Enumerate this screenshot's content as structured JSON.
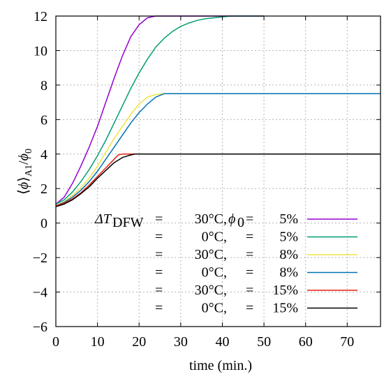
{
  "chart_data": {
    "type": "line",
    "xlabel": "time (min.)",
    "ylabel": "⟨ϕ⟩A1/ϕ0",
    "xlim": [
      0,
      78
    ],
    "ylim": [
      -6,
      12
    ],
    "x_ticks": [
      "0",
      "10",
      "20",
      "30",
      "40",
      "50",
      "60",
      "70"
    ],
    "y_ticks": [
      "−6",
      "−4",
      "−2",
      "0",
      "2",
      "4",
      "6",
      "8",
      "10",
      "12"
    ],
    "grid": true,
    "legend_position": "bottom-right",
    "legend_rows": [
      {
        "lhs": "ΔT",
        "lhs_sub": "DFW",
        "eq": "=",
        "temp": "30°C,",
        "phi": "ϕ",
        "phi_sub": "0",
        "phi_eq": "=",
        "pct": "5%"
      },
      {
        "lhs": "",
        "lhs_sub": "",
        "eq": "=",
        "temp": "0°C,",
        "phi": "",
        "phi_sub": "",
        "phi_eq": "=",
        "pct": "5%"
      },
      {
        "lhs": "",
        "lhs_sub": "",
        "eq": "=",
        "temp": "30°C,",
        "phi": "",
        "phi_sub": "",
        "phi_eq": "=",
        "pct": "8%"
      },
      {
        "lhs": "",
        "lhs_sub": "",
        "eq": "=",
        "temp": "0°C,",
        "phi": "",
        "phi_sub": "",
        "phi_eq": "=",
        "pct": "8%"
      },
      {
        "lhs": "",
        "lhs_sub": "",
        "eq": "=",
        "temp": "30°C,",
        "phi": "",
        "phi_sub": "",
        "phi_eq": "=",
        "pct": "15%"
      },
      {
        "lhs": "",
        "lhs_sub": "",
        "eq": "=",
        "temp": "0°C,",
        "phi": "",
        "phi_sub": "",
        "phi_eq": "=",
        "pct": "15%"
      }
    ],
    "series": [
      {
        "color": "#9400d3",
        "x": [
          0,
          2,
          4,
          6,
          8,
          10,
          12,
          14,
          16,
          18,
          20,
          22,
          24,
          26,
          28,
          30,
          35,
          40,
          45,
          50
        ],
        "y": [
          1.1,
          1.5,
          2.3,
          3.3,
          4.4,
          5.6,
          7.0,
          8.4,
          9.7,
          10.8,
          11.5,
          11.9,
          12.0,
          12.0,
          12.0,
          12.0,
          12.0,
          12.0,
          12.0,
          12.0
        ]
      },
      {
        "color": "#009e73",
        "x": [
          0,
          2,
          4,
          6,
          8,
          10,
          12,
          14,
          16,
          18,
          20,
          22,
          24,
          26,
          28,
          30,
          32,
          34,
          36,
          38,
          40,
          42,
          44,
          46,
          48,
          50
        ],
        "y": [
          1.1,
          1.35,
          1.8,
          2.4,
          3.1,
          3.9,
          4.8,
          5.8,
          6.8,
          7.8,
          8.7,
          9.5,
          10.2,
          10.7,
          11.1,
          11.4,
          11.6,
          11.75,
          11.85,
          11.9,
          11.95,
          12.0,
          12.0,
          12.0,
          12.0,
          12.0
        ]
      },
      {
        "color": "#f0e442",
        "x": [
          0,
          2,
          4,
          6,
          8,
          10,
          12,
          14,
          16,
          18,
          20,
          22,
          24,
          26,
          28
        ],
        "y": [
          1.0,
          1.25,
          1.6,
          2.05,
          2.6,
          3.3,
          4.1,
          4.9,
          5.6,
          6.3,
          6.9,
          7.3,
          7.45,
          7.5,
          7.5
        ]
      },
      {
        "color": "#0072b2",
        "x": [
          0,
          2,
          4,
          6,
          8,
          10,
          12,
          14,
          16,
          18,
          20,
          22,
          24,
          26,
          28,
          30,
          40,
          50,
          60,
          70,
          78
        ],
        "y": [
          1.0,
          1.2,
          1.5,
          1.9,
          2.4,
          3.0,
          3.7,
          4.4,
          5.1,
          5.8,
          6.4,
          6.9,
          7.3,
          7.5,
          7.5,
          7.5,
          7.5,
          7.5,
          7.5,
          7.5,
          7.5
        ]
      },
      {
        "color": "#e51e10",
        "x": [
          0,
          2,
          4,
          6,
          8,
          10,
          12,
          14,
          15,
          16,
          18,
          20
        ],
        "y": [
          1.0,
          1.15,
          1.4,
          1.75,
          2.2,
          2.7,
          3.2,
          3.7,
          3.95,
          4.0,
          4.0,
          4.0
        ]
      },
      {
        "color": "#000000",
        "x": [
          0,
          2,
          4,
          6,
          8,
          10,
          12,
          14,
          16,
          18,
          19,
          20,
          25,
          30,
          40,
          50,
          60,
          70,
          78
        ],
        "y": [
          0.95,
          1.1,
          1.35,
          1.7,
          2.1,
          2.6,
          3.05,
          3.5,
          3.8,
          3.95,
          4.0,
          4.0,
          4.0,
          4.0,
          4.0,
          4.0,
          4.0,
          4.0,
          4.0
        ]
      }
    ]
  }
}
